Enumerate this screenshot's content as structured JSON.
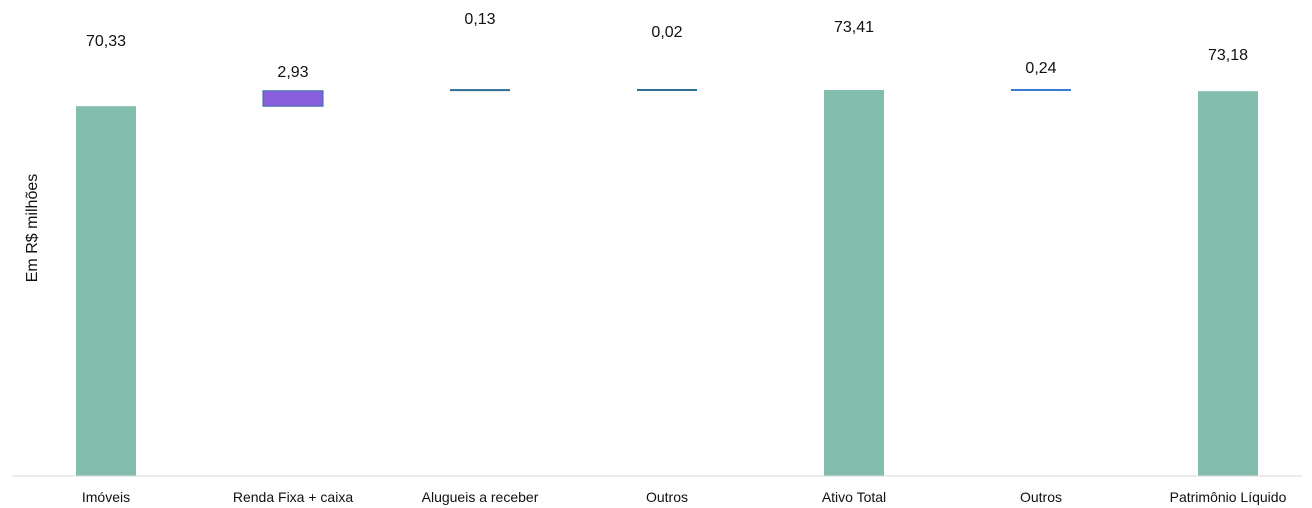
{
  "chart_data": {
    "type": "bar",
    "subtype": "waterfall",
    "ylabel": "Em R$ milhões",
    "categories": [
      "Imóveis",
      "Renda Fixa + caixa",
      "Alugueis a receber",
      "Outros",
      "Ativo Total",
      "Outros",
      "Patrimônio Líquido"
    ],
    "values": [
      70.33,
      2.93,
      0.13,
      0.02,
      73.41,
      0.24,
      73.18
    ],
    "value_labels": [
      "70,33",
      "2,93",
      "0,13",
      "0,02",
      "73,41",
      "0,24",
      "73,18"
    ],
    "kinds": [
      "total",
      "increase",
      "increase",
      "increase",
      "total",
      "decrease",
      "total"
    ],
    "ylim": [
      0,
      75
    ],
    "grid": false,
    "legend": "none",
    "colors": {
      "total": "#82bdae",
      "increase_fill": "#8a5fdd",
      "increase_border": "#2e6ea3",
      "small_step": "#2e6e96",
      "decrease": "#3a7dd0",
      "axis": "#d9d9d9"
    }
  }
}
